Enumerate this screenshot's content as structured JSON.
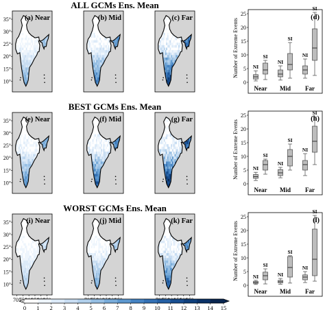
{
  "row_titles": [
    "ALL GCMs Ens. Mean",
    "BEST GCMs Ens. Mean",
    "WORST GCMs Ens. Mean"
  ],
  "map_panel_labels": [
    [
      "(a) Near",
      "(b) Mid",
      "(c) Far"
    ],
    [
      "(e) Near",
      "(f) Mid",
      "(g) Far"
    ],
    [
      "(i) Near",
      "(j) Mid",
      "(k) Far"
    ]
  ],
  "box_panel_labels": [
    "(d)",
    "(h)",
    "(l)"
  ],
  "colors": {
    "map_background": "#d4d4d4",
    "box_fill": "#bdbdbd",
    "colorbar": [
      "#ffffff",
      "#eef5fc",
      "#dceaf8",
      "#c8ddf2",
      "#b1cfeb",
      "#95bee3",
      "#78abd9",
      "#5c97ce",
      "#4583c2",
      "#3370b4",
      "#245fa3",
      "#184e90",
      "#0f3f7b",
      "#0a3166",
      "#08254f"
    ]
  },
  "chart_data": [
    {
      "type": "heatmap",
      "description_axes": "map longitude/latitude",
      "lon_ticks": [
        "70°",
        "75°",
        "80°",
        "85°",
        "90°",
        "95°"
      ],
      "lat_ticks": [
        "35°",
        "30°",
        "25°",
        "20°",
        "15°",
        "10°"
      ],
      "colorbar": {
        "min": 0,
        "max": 15,
        "ticks": [
          "0",
          "1",
          "2",
          "3",
          "4",
          "5",
          "6",
          "7",
          "8",
          "9",
          "10",
          "11",
          "12",
          "13",
          "14",
          "15"
        ],
        "extend": "max"
      },
      "intensity_by_row_and_period": [
        [
          0.45,
          0.65,
          0.9
        ],
        [
          0.55,
          0.75,
          1.0
        ],
        [
          0.3,
          0.45,
          0.75
        ]
      ]
    },
    {
      "type": "box",
      "panel": "(d)",
      "ylabel": "Number of Extreme Events",
      "ylim": [
        0,
        25
      ],
      "yticks": [
        "0",
        "5",
        "10",
        "15",
        "20",
        "25"
      ],
      "categories": [
        "Near",
        "Mid",
        "Far"
      ],
      "group_labels": [
        "NI",
        "SI"
      ],
      "boxes": [
        {
          "group": "Near",
          "label": "NI",
          "whislo": 0.5,
          "q1": 1.2,
          "med": 2.0,
          "q3": 2.8,
          "whishi": 4.2
        },
        {
          "group": "Near",
          "label": "SI",
          "whislo": 1.0,
          "q1": 3.0,
          "med": 4.5,
          "q3": 7.0,
          "whishi": 8.0
        },
        {
          "group": "Mid",
          "label": "NI",
          "whislo": 0.8,
          "q1": 2.0,
          "med": 3.0,
          "q3": 4.5,
          "whishi": 6.0
        },
        {
          "group": "Mid",
          "label": "SI",
          "whislo": 1.5,
          "q1": 4.5,
          "med": 6.5,
          "q3": 10.5,
          "whishi": 14.5
        },
        {
          "group": "Far",
          "label": "NI",
          "whislo": 1.5,
          "q1": 3.0,
          "med": 4.5,
          "q3": 6.0,
          "whishi": 8.5
        },
        {
          "group": "Far",
          "label": "SI",
          "whislo": 2.5,
          "q1": 8.0,
          "med": 12.5,
          "q3": 19.5,
          "whishi": 25.5
        }
      ]
    },
    {
      "type": "box",
      "panel": "(h)",
      "ylabel": "Number of Extreme Events",
      "ylim": [
        0,
        25
      ],
      "yticks": [
        "0",
        "5",
        "10",
        "15",
        "20",
        "25"
      ],
      "categories": [
        "Near",
        "Mid",
        "Far"
      ],
      "group_labels": [
        "NI",
        "SI"
      ],
      "boxes": [
        {
          "group": "Near",
          "label": "NI",
          "whislo": 1.2,
          "q1": 2.0,
          "med": 2.6,
          "q3": 3.4,
          "whishi": 4.2
        },
        {
          "group": "Near",
          "label": "SI",
          "whislo": 3.5,
          "q1": 5.0,
          "med": 7.0,
          "q3": 8.5,
          "whishi": 9.0
        },
        {
          "group": "Mid",
          "label": "NI",
          "whislo": 2.2,
          "q1": 3.0,
          "med": 4.0,
          "q3": 5.2,
          "whishi": 6.0
        },
        {
          "group": "Mid",
          "label": "SI",
          "whislo": 5.0,
          "q1": 6.5,
          "med": 10.0,
          "q3": 12.5,
          "whishi": 14.5
        },
        {
          "group": "Far",
          "label": "NI",
          "whislo": 3.0,
          "q1": 5.0,
          "med": 7.0,
          "q3": 8.5,
          "whishi": 11.0
        },
        {
          "group": "Far",
          "label": "SI",
          "whislo": 7.0,
          "q1": 11.5,
          "med": 15.5,
          "q3": 21.0,
          "whishi": 24.5
        }
      ]
    },
    {
      "type": "box",
      "panel": "(l)",
      "ylabel": "Number of Extreme Events",
      "ylim": [
        0,
        25
      ],
      "yticks": [
        "0",
        "5",
        "10",
        "15",
        "20",
        "25"
      ],
      "categories": [
        "Near",
        "Mid",
        "Far"
      ],
      "group_labels": [
        "NI",
        "SI"
      ],
      "boxes": [
        {
          "group": "Near",
          "label": "NI",
          "whislo": 0.3,
          "q1": 0.7,
          "med": 1.0,
          "q3": 1.4,
          "whishi": 1.8
        },
        {
          "group": "Near",
          "label": "SI",
          "whislo": 0.5,
          "q1": 2.0,
          "med": 3.5,
          "q3": 4.8,
          "whishi": 6.0
        },
        {
          "group": "Mid",
          "label": "NI",
          "whislo": 0.4,
          "q1": 0.9,
          "med": 1.3,
          "q3": 1.8,
          "whishi": 2.5
        },
        {
          "group": "Mid",
          "label": "SI",
          "whislo": 0.8,
          "q1": 3.0,
          "med": 6.5,
          "q3": 10.5,
          "whishi": 10.8
        },
        {
          "group": "Far",
          "label": "NI",
          "whislo": 1.0,
          "q1": 2.0,
          "med": 3.0,
          "q3": 3.8,
          "whishi": 5.0
        },
        {
          "group": "Far",
          "label": "SI",
          "whislo": 1.5,
          "q1": 3.5,
          "med": 9.5,
          "q3": 20.5,
          "whishi": 25.5
        }
      ]
    }
  ]
}
